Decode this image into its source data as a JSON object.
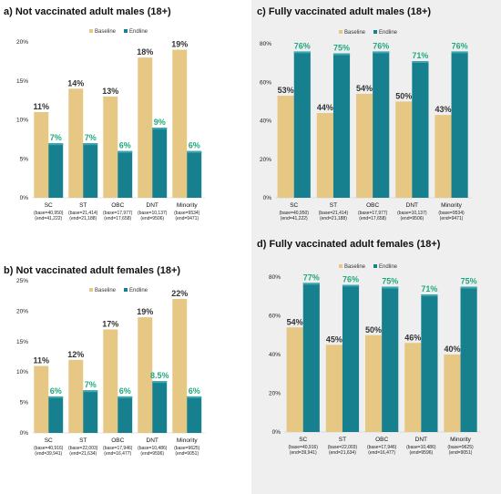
{
  "colors": {
    "baseline": "#E6C784",
    "endline": "#17808E",
    "endline_label": "#1FA97F",
    "baseline_label": "#333333",
    "panel_bg": "#EFEFEF"
  },
  "chart_data": [
    {
      "id": "a",
      "type": "bar",
      "title": "a) Not vaccinated adult males (18+)",
      "categories": [
        "SC",
        "ST",
        "OBC",
        "DNT",
        "Minority"
      ],
      "bases": [
        [
          "(base=40,950)",
          "(end=41,222)"
        ],
        [
          "(base=21,414)",
          "(end=21,188)"
        ],
        [
          "(base=17,977)",
          "(end=17,658)"
        ],
        [
          "(base=10,137)",
          "(end=9506)"
        ],
        [
          "(base=9534)",
          "(end=9471)"
        ]
      ],
      "ylim": [
        0,
        20
      ],
      "yticks": [
        "0%",
        "5%",
        "10%",
        "15%",
        "20%"
      ],
      "legend": [
        "Baseline",
        "Endline"
      ],
      "series": [
        {
          "name": "Baseline",
          "values": [
            11,
            14,
            13,
            18,
            19
          ],
          "labels": [
            "11%",
            "14%",
            "13%",
            "18%",
            "19%"
          ]
        },
        {
          "name": "Endline",
          "values": [
            7,
            7,
            6,
            9,
            6
          ],
          "labels": [
            "7%",
            "7%",
            "6%",
            "9%",
            "6%"
          ]
        }
      ]
    },
    {
      "id": "c",
      "type": "bar",
      "title": "c) Fully vaccinated adult males (18+)",
      "categories": [
        "SC",
        "ST",
        "OBC",
        "DNT",
        "Minority"
      ],
      "bases": [
        [
          "(base=40,950)",
          "(end=41,222)"
        ],
        [
          "(base=21,414)",
          "(end=21,188)"
        ],
        [
          "(base=17,977)",
          "(end=17,658)"
        ],
        [
          "(base=10,137)",
          "(end=9506)"
        ],
        [
          "(base=9534)",
          "(end=9471)"
        ]
      ],
      "ylim": [
        0,
        80
      ],
      "yticks": [
        "0%",
        "20%",
        "40%",
        "60%",
        "80%"
      ],
      "legend": [
        "Baseline",
        "Endline"
      ],
      "series": [
        {
          "name": "Baseline",
          "values": [
            53,
            44,
            54,
            50,
            43
          ],
          "labels": [
            "53%",
            "44%",
            "54%",
            "50%",
            "43%"
          ]
        },
        {
          "name": "Endline",
          "values": [
            76,
            75,
            76,
            71,
            76
          ],
          "labels": [
            "76%",
            "75%",
            "76%",
            "71%",
            "76%"
          ]
        }
      ]
    },
    {
      "id": "b",
      "type": "bar",
      "title": "b) Not vaccinated adult females (18+)",
      "categories": [
        "SC",
        "ST",
        "OBC",
        "DNT",
        "Minority"
      ],
      "bases": [
        [
          "(base=40,916)",
          "(end=39,941)"
        ],
        [
          "(base=22,003)",
          "(end=21,634)"
        ],
        [
          "(base=17,946)",
          "(end=16,477)"
        ],
        [
          "(base=10,486)",
          "(end=9596)"
        ],
        [
          "(base=9625)",
          "(end=9051)"
        ]
      ],
      "ylim": [
        0,
        25
      ],
      "yticks": [
        "0%",
        "5%",
        "10%",
        "15%",
        "20%",
        "25%"
      ],
      "legend": [
        "Baseline",
        "Endline"
      ],
      "series": [
        {
          "name": "Baseline",
          "values": [
            11,
            12,
            17,
            19,
            22
          ],
          "labels": [
            "11%",
            "12%",
            "17%",
            "19%",
            "22%"
          ]
        },
        {
          "name": "Endline",
          "values": [
            6,
            7,
            6,
            8.5,
            6
          ],
          "labels": [
            "6%",
            "7%",
            "6%",
            "8.5%",
            "6%"
          ]
        }
      ]
    },
    {
      "id": "d",
      "type": "bar",
      "title": "d) Fully vaccinated adult females (18+)",
      "categories": [
        "SC",
        "ST",
        "OBC",
        "DNT",
        "Minority"
      ],
      "bases": [
        [
          "(base=40,916)",
          "(end=39,941)"
        ],
        [
          "(base=22,003)",
          "(end=21,634)"
        ],
        [
          "(base=17,946)",
          "(end=16,477)"
        ],
        [
          "(base=10,486)",
          "(end=9596)"
        ],
        [
          "(base=9625)",
          "(end=9051)"
        ]
      ],
      "ylim": [
        0,
        80
      ],
      "yticks": [
        "0%",
        "20%",
        "40%",
        "60%",
        "80%"
      ],
      "legend": [
        "Baseline",
        "Endline"
      ],
      "series": [
        {
          "name": "Baseline",
          "values": [
            54,
            45,
            50,
            46,
            40
          ],
          "labels": [
            "54%",
            "45%",
            "50%",
            "46%",
            "40%"
          ]
        },
        {
          "name": "Endline",
          "values": [
            77,
            76,
            75,
            71,
            75
          ],
          "labels": [
            "77%",
            "76%",
            "75%",
            "71%",
            "75%"
          ]
        }
      ]
    }
  ]
}
